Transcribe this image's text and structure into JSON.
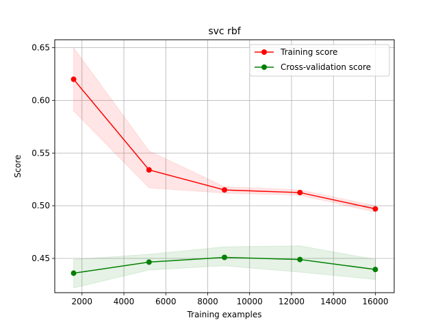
{
  "chart_data": {
    "type": "line",
    "title": "svc rbf",
    "xlabel": "Training examples",
    "ylabel": "Score",
    "xlim": [
      700,
      16900
    ],
    "ylim": [
      0.4175,
      0.6575
    ],
    "xticks": [
      2000,
      4000,
      6000,
      8000,
      10000,
      12000,
      14000,
      16000
    ],
    "xtick_labels": [
      "2000",
      "4000",
      "6000",
      "8000",
      "10000",
      "12000",
      "14000",
      "16000"
    ],
    "yticks": [
      0.45,
      0.5,
      0.55,
      0.6,
      0.65
    ],
    "ytick_labels": [
      "0.45",
      "0.50",
      "0.55",
      "0.60",
      "0.65"
    ],
    "grid": true,
    "legend_position": "top-right",
    "x": [
      1600,
      5200,
      8800,
      12400,
      16000
    ],
    "series": [
      {
        "name": "Training score",
        "color": "#ff0000",
        "values": [
          0.62,
          0.534,
          0.515,
          0.5125,
          0.497
        ],
        "band_upper": [
          0.65,
          0.552,
          0.518,
          0.515,
          0.5
        ],
        "band_lower": [
          0.59,
          0.517,
          0.512,
          0.51,
          0.494
        ]
      },
      {
        "name": "Cross-validation score",
        "color": "#008000",
        "values": [
          0.436,
          0.4465,
          0.451,
          0.449,
          0.4395
        ],
        "band_upper": [
          0.449,
          0.454,
          0.461,
          0.462,
          0.449
        ],
        "band_lower": [
          0.422,
          0.439,
          0.443,
          0.437,
          0.43
        ]
      }
    ]
  }
}
